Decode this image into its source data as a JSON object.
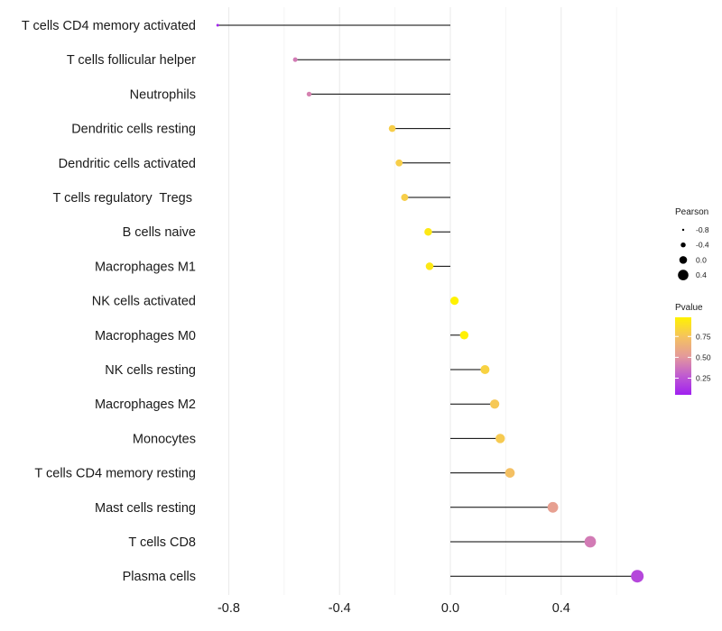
{
  "chart_data": {
    "type": "lollipop",
    "categories": [
      "T cells CD4 memory activated",
      "T cells follicular helper",
      "Neutrophils",
      "Dendritic cells resting",
      "Dendritic cells activated",
      "T cells regulatory  Tregs ",
      "B cells naive",
      "Macrophages M1",
      "NK cells activated",
      "Macrophages M0",
      "NK cells resting",
      "Macrophages M2",
      "Monocytes",
      "T cells CD4 memory resting",
      "Mast cells resting",
      "T cells CD8",
      "Plasma cells"
    ],
    "values": [
      -0.84,
      -0.56,
      -0.51,
      -0.21,
      -0.185,
      -0.165,
      -0.08,
      -0.075,
      0.015,
      0.05,
      0.125,
      0.16,
      0.18,
      0.215,
      0.37,
      0.505,
      0.675
    ],
    "pvalues": [
      0.07,
      0.4,
      0.42,
      0.8,
      0.8,
      0.8,
      0.93,
      0.93,
      0.98,
      0.97,
      0.82,
      0.77,
      0.78,
      0.73,
      0.55,
      0.4,
      0.2
    ],
    "xlim": [
      -0.87,
      0.72
    ],
    "x_ticks": [
      -0.8,
      -0.4,
      0.0,
      0.4
    ],
    "x_tick_labels": [
      "-0.8",
      "-0.4",
      "0.0",
      "0.4"
    ],
    "xlabel": "",
    "ylabel": "",
    "legend_size": {
      "title": "Pearson",
      "values": [
        -0.8,
        -0.4,
        0.0,
        0.4
      ],
      "labels": [
        "-0.8",
        "-0.4",
        "0.0",
        "0.4"
      ]
    },
    "legend_color": {
      "title": "Pvalue",
      "range": [
        0.05,
        0.98
      ],
      "ticks": [
        0.75,
        0.5,
        0.25
      ],
      "tick_labels": [
        "0.75",
        "0.50",
        "0.25"
      ],
      "colors": [
        "#A020F0",
        "#C05CD0",
        "#E49A9A",
        "#F5C35E",
        "#FFF200"
      ]
    },
    "grid": true,
    "segment_color": "#000000"
  }
}
